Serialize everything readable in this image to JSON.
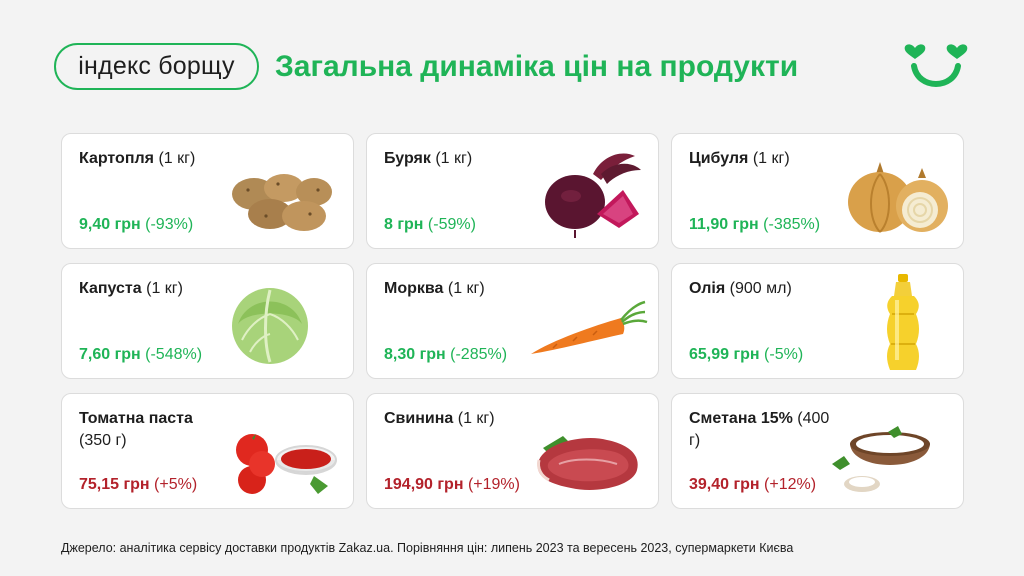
{
  "brand": {
    "logo_text": "індекс борщу",
    "accent_color": "#1fb457",
    "negative_color": "#b3222b"
  },
  "headline": "Загальна динаміка цін на продукти",
  "products": [
    {
      "name": "Картопля",
      "unit": "(1 кг)",
      "price": "9,40 грн",
      "change": "(-93%)",
      "trend": "down",
      "icon": "potato-icon"
    },
    {
      "name": "Буряк",
      "unit": "(1 кг)",
      "price": "8 грн",
      "change": "(-59%)",
      "trend": "down",
      "icon": "beet-icon"
    },
    {
      "name": "Цибуля",
      "unit": "(1 кг)",
      "price": "11,90 грн",
      "change": "(-385%)",
      "trend": "down",
      "icon": "onion-icon"
    },
    {
      "name": "Капуста",
      "unit": "(1 кг)",
      "price": "7,60 грн",
      "change": "(-548%)",
      "trend": "down",
      "icon": "cabbage-icon"
    },
    {
      "name": "Морква",
      "unit": "(1 кг)",
      "price": "8,30 грн",
      "change": "(-285%)",
      "trend": "down",
      "icon": "carrot-icon"
    },
    {
      "name": "Олія",
      "unit": "(900 мл)",
      "price": "65,99 грн",
      "change": "(-5%)",
      "trend": "down",
      "icon": "oil-bottle-icon"
    },
    {
      "name": "Томатна паста",
      "unit": "(350 г)",
      "price": "75,15 грн",
      "change": "(+5%)",
      "trend": "up",
      "icon": "tomato-paste-icon"
    },
    {
      "name": "Свинина",
      "unit": "(1 кг)",
      "price": "194,90 грн",
      "change": "(+19%)",
      "trend": "up",
      "icon": "pork-icon"
    },
    {
      "name": "Сметана 15%",
      "unit": "(400 г)",
      "price": "39,40 грн",
      "change": "(+12%)",
      "trend": "up",
      "icon": "sour-cream-icon"
    }
  ],
  "source": "Джерело: аналітика сервісу доставки продуктів Zakaz.ua. Порівняння цін: липень 2023 та вересень 2023, супермаркети Києва"
}
